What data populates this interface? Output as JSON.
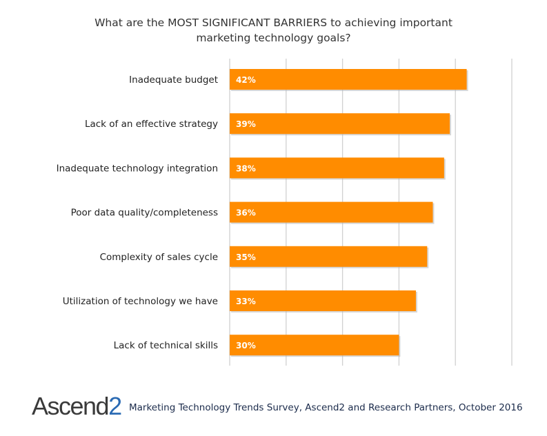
{
  "chart_data": {
    "type": "bar",
    "orientation": "horizontal",
    "title": "What are the MOST SIGNIFICANT  BARRIERS to achieving important marketing technology goals?",
    "title_lines": [
      "What are the MOST SIGNIFICANT  BARRIERS to achieving important",
      "marketing technology goals?"
    ],
    "categories": [
      "Inadequate budget",
      "Lack of an effective strategy",
      "Inadequate technology integration",
      "Poor data quality/completeness",
      "Complexity of sales cycle",
      "Utilization of technology we have",
      "Lack of technical skills"
    ],
    "values": [
      42,
      39,
      38,
      36,
      35,
      33,
      30
    ],
    "data_labels": [
      "42%",
      "39%",
      "38%",
      "36%",
      "35%",
      "33%",
      "30%"
    ],
    "xlim": [
      0,
      50
    ],
    "grid": true,
    "bar_color": "#ff8c00",
    "grid_color": "#d0d0d0"
  },
  "footer": {
    "logo_text": "Ascend",
    "logo_suffix": "2",
    "source": "Marketing Technology Trends Survey, Ascend2 and Research Partners, October 2016"
  }
}
